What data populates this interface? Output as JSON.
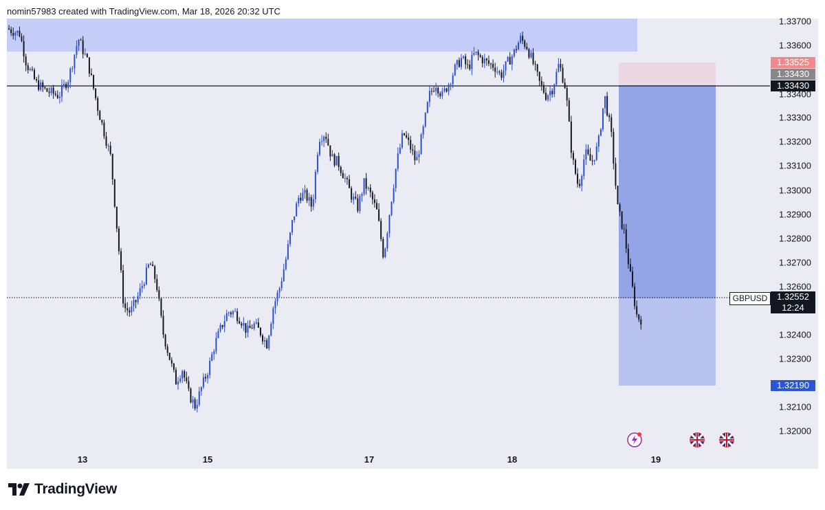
{
  "header": {
    "text": "nomin57983 created with TradingView.com, Mar 18, 2026 20:32 UTC"
  },
  "footer": {
    "brand": "TradingView"
  },
  "chart_data": {
    "type": "candlestick",
    "symbol": "GBPUSD",
    "y_ticks": [
      "1.33700",
      "1.33600",
      "1.33400",
      "1.33300",
      "1.33200",
      "1.33100",
      "1.33000",
      "1.32900",
      "1.32800",
      "1.32700",
      "1.32600",
      "1.32400",
      "1.32300",
      "1.32100",
      "1.32000"
    ],
    "ylim": [
      1.3195,
      1.3376
    ],
    "x_ticks": [
      "13",
      "15",
      "17",
      "18",
      "19"
    ],
    "price_labels": {
      "stop": "1.33525",
      "entry_gray": "1.33430",
      "entry_black": "1.33430",
      "target": "1.32190"
    },
    "current": {
      "price": "1.32552",
      "countdown": "12:24"
    },
    "series_path": [
      [
        0.0,
        1.3372
      ],
      [
        0.02,
        1.337
      ],
      [
        0.03,
        1.3358
      ],
      [
        0.045,
        1.335
      ],
      [
        0.06,
        1.3347
      ],
      [
        0.08,
        1.3345
      ],
      [
        0.095,
        1.3352
      ],
      [
        0.11,
        1.3368
      ],
      [
        0.125,
        1.3358
      ],
      [
        0.14,
        1.334
      ],
      [
        0.15,
        1.333
      ],
      [
        0.16,
        1.332
      ],
      [
        0.17,
        1.329
      ],
      [
        0.18,
        1.326
      ],
      [
        0.19,
        1.3258
      ],
      [
        0.2,
        1.3263
      ],
      [
        0.21,
        1.327
      ],
      [
        0.22,
        1.3278
      ],
      [
        0.23,
        1.327
      ],
      [
        0.24,
        1.325
      ],
      [
        0.25,
        1.324
      ],
      [
        0.26,
        1.323
      ],
      [
        0.27,
        1.3235
      ],
      [
        0.28,
        1.3225
      ],
      [
        0.29,
        1.322
      ],
      [
        0.3,
        1.3228
      ],
      [
        0.31,
        1.3235
      ],
      [
        0.32,
        1.3245
      ],
      [
        0.33,
        1.3252
      ],
      [
        0.34,
        1.3258
      ],
      [
        0.35,
        1.3258
      ],
      [
        0.36,
        1.3255
      ],
      [
        0.37,
        1.325
      ],
      [
        0.38,
        1.3253
      ],
      [
        0.39,
        1.325
      ],
      [
        0.4,
        1.3245
      ],
      [
        0.41,
        1.326
      ],
      [
        0.42,
        1.3268
      ],
      [
        0.43,
        1.328
      ],
      [
        0.44,
        1.3295
      ],
      [
        0.45,
        1.3305
      ],
      [
        0.46,
        1.3305
      ],
      [
        0.47,
        1.33
      ],
      [
        0.48,
        1.3328
      ],
      [
        0.49,
        1.333
      ],
      [
        0.5,
        1.332
      ],
      [
        0.51,
        1.3318
      ],
      [
        0.52,
        1.3312
      ],
      [
        0.53,
        1.3305
      ],
      [
        0.54,
        1.33
      ],
      [
        0.55,
        1.331
      ],
      [
        0.56,
        1.3305
      ],
      [
        0.57,
        1.3298
      ],
      [
        0.58,
        1.328
      ],
      [
        0.59,
        1.33
      ],
      [
        0.6,
        1.3318
      ],
      [
        0.61,
        1.333
      ],
      [
        0.62,
        1.3325
      ],
      [
        0.63,
        1.3318
      ],
      [
        0.64,
        1.333
      ],
      [
        0.65,
        1.3345
      ],
      [
        0.66,
        1.335
      ],
      [
        0.67,
        1.3345
      ],
      [
        0.68,
        1.335
      ],
      [
        0.69,
        1.3356
      ],
      [
        0.7,
        1.336
      ],
      [
        0.71,
        1.3356
      ],
      [
        0.72,
        1.3362
      ],
      [
        0.73,
        1.336
      ],
      [
        0.74,
        1.3358
      ],
      [
        0.75,
        1.3357
      ],
      [
        0.76,
        1.3353
      ],
      [
        0.77,
        1.3358
      ],
      [
        0.78,
        1.3362
      ],
      [
        0.79,
        1.3368
      ],
      [
        0.8,
        1.3365
      ],
      [
        0.81,
        1.3358
      ],
      [
        0.82,
        1.335
      ],
      [
        0.83,
        1.3345
      ],
      [
        0.84,
        1.3348
      ],
      [
        0.85,
        1.3358
      ],
      [
        0.86,
        1.3348
      ],
      [
        0.87,
        1.332
      ],
      [
        0.88,
        1.3308
      ],
      [
        0.89,
        1.3322
      ],
      [
        0.9,
        1.3318
      ],
      [
        0.91,
        1.3325
      ],
      [
        0.92,
        1.3345
      ],
      [
        0.93,
        1.333
      ],
      [
        0.94,
        1.33
      ],
      [
        0.95,
        1.329
      ],
      [
        0.96,
        1.3272
      ],
      [
        0.97,
        1.3256
      ],
      [
        0.976,
        1.32552
      ]
    ]
  },
  "colors": {
    "background": "#ebebf3",
    "zone_blue": "#c4cdf7",
    "profit_zone": "#93a5e6",
    "target_zone": "#b7c2ee",
    "stop_zone": "#ecd6e1",
    "candle_up": "#2a4fd0",
    "candle_down": "#131722",
    "stop_label": "#f08a8a",
    "entry_gray_label": "#888888",
    "entry_label": "#131722",
    "target_label": "#2a56d6"
  }
}
